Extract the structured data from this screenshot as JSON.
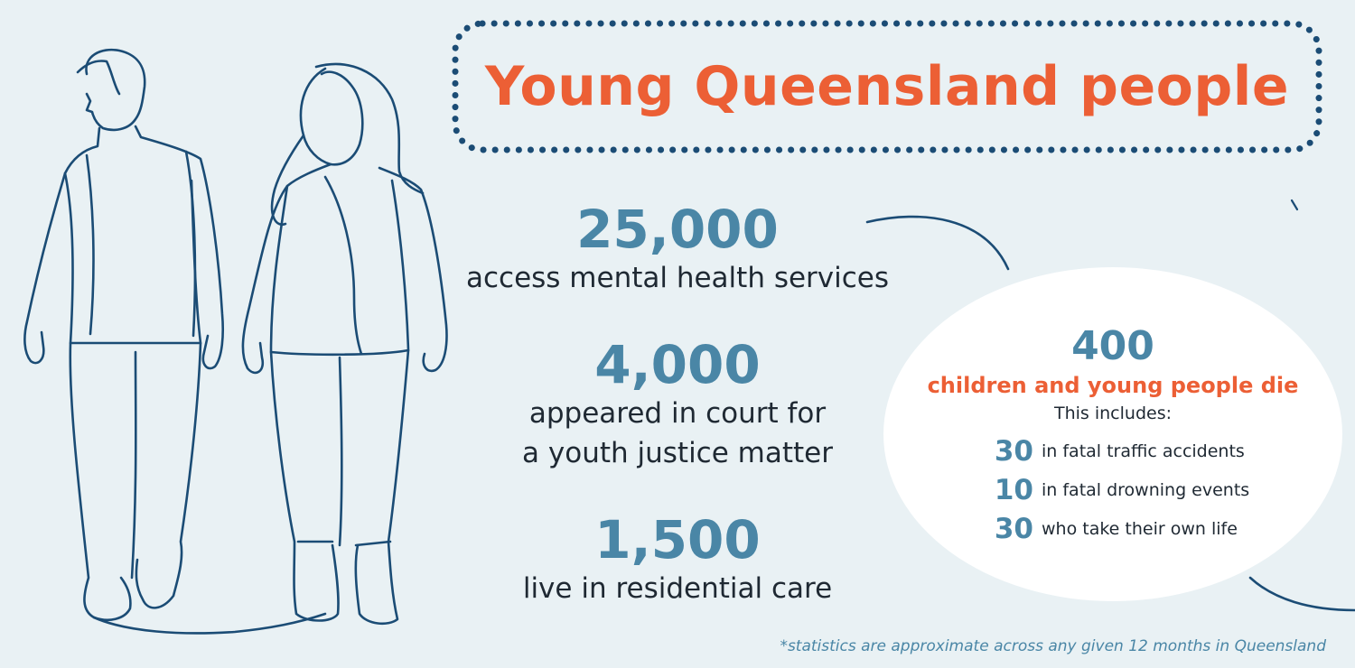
{
  "title": "Young Queensland people",
  "colors": {
    "accent": "#ec5f35",
    "stat_blue": "#4a86a6",
    "line_navy": "#1b4c75",
    "background": "#e9f1f4"
  },
  "stats": [
    {
      "value": "25,000",
      "label_lines": [
        "access mental health services"
      ]
    },
    {
      "value": "4,000",
      "label_lines": [
        "appeared in court for",
        "a youth justice matter"
      ]
    },
    {
      "value": "1,500",
      "label_lines": [
        "live in residential care"
      ]
    }
  ],
  "bubble": {
    "value": "400",
    "heading": "children and young people die",
    "subheading": "This includes:",
    "items": [
      {
        "value": "30",
        "text": "in fatal traffic accidents"
      },
      {
        "value": "10",
        "text": "in fatal drowning events"
      },
      {
        "value": "30",
        "text": "who take their own life"
      }
    ]
  },
  "footnote": "*statistics are approximate across any given 12 months in Queensland",
  "icons": [
    "line-drawing-young-man-icon",
    "line-drawing-young-woman-icon"
  ]
}
